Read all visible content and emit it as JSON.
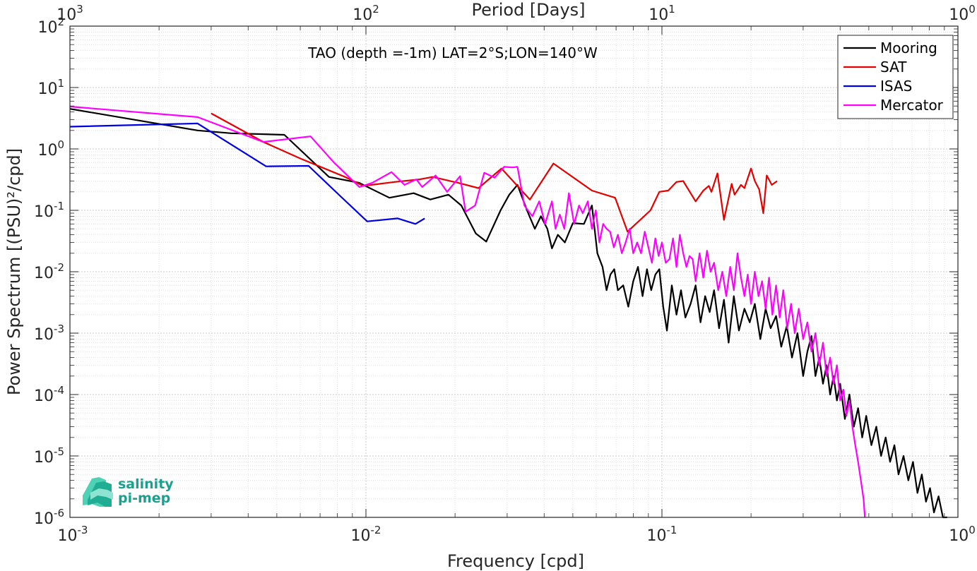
{
  "chart_data": {
    "type": "line",
    "title": "TAO (depth =-1m) LAT=2°S;LON=140°W",
    "xlabel": "Frequency [cpd]",
    "ylabel": "Power Spectrum [(PSU)²/cpd]",
    "top_xlabel": "Period [Days]",
    "xscale": "log",
    "yscale": "log",
    "xlim": [
      0.001,
      1
    ],
    "ylim": [
      1e-06,
      100
    ],
    "grid": true,
    "legend_position": "top-right",
    "x_ticks": [
      {
        "value": 0.001,
        "base": "10",
        "exp": "-3"
      },
      {
        "value": 0.01,
        "base": "10",
        "exp": "-2"
      },
      {
        "value": 0.1,
        "base": "10",
        "exp": "-1"
      },
      {
        "value": 1,
        "base": "10",
        "exp": "0"
      }
    ],
    "top_ticks": [
      {
        "value": 0.001,
        "base": "10",
        "exp": "3"
      },
      {
        "value": 0.01,
        "base": "10",
        "exp": "2"
      },
      {
        "value": 0.1,
        "base": "10",
        "exp": "1"
      },
      {
        "value": 1,
        "base": "10",
        "exp": "0"
      }
    ],
    "y_ticks": [
      {
        "value": 100,
        "base": "10",
        "exp": "2"
      },
      {
        "value": 10,
        "base": "10",
        "exp": "1"
      },
      {
        "value": 1,
        "base": "10",
        "exp": "0"
      },
      {
        "value": 0.1,
        "base": "10",
        "exp": "-1"
      },
      {
        "value": 0.01,
        "base": "10",
        "exp": "-2"
      },
      {
        "value": 0.001,
        "base": "10",
        "exp": "-3"
      },
      {
        "value": 0.0001,
        "base": "10",
        "exp": "-4"
      },
      {
        "value": 1e-05,
        "base": "10",
        "exp": "-5"
      },
      {
        "value": 1e-06,
        "base": "10",
        "exp": "-6"
      }
    ],
    "series": [
      {
        "name": "Mooring",
        "color": "#000000",
        "points": [
          [
            0.001,
            4.5
          ],
          [
            0.0027,
            2.0
          ],
          [
            0.0035,
            1.8
          ],
          [
            0.0053,
            1.7
          ],
          [
            0.0075,
            0.35
          ],
          [
            0.0095,
            0.28
          ],
          [
            0.0105,
            0.22
          ],
          [
            0.012,
            0.16
          ],
          [
            0.0145,
            0.19
          ],
          [
            0.0165,
            0.15
          ],
          [
            0.019,
            0.18
          ],
          [
            0.021,
            0.12
          ],
          [
            0.0235,
            0.042
          ],
          [
            0.0255,
            0.031
          ],
          [
            0.0285,
            0.1
          ],
          [
            0.0305,
            0.18
          ],
          [
            0.0325,
            0.26
          ],
          [
            0.035,
            0.1
          ],
          [
            0.0372,
            0.05
          ],
          [
            0.039,
            0.08
          ],
          [
            0.041,
            0.05
          ],
          [
            0.0425,
            0.024
          ],
          [
            0.0445,
            0.04
          ],
          [
            0.047,
            0.03
          ],
          [
            0.05,
            0.062
          ],
          [
            0.0545,
            0.06
          ],
          [
            0.058,
            0.12
          ],
          [
            0.0605,
            0.02
          ],
          [
            0.063,
            0.012
          ],
          [
            0.065,
            0.005
          ],
          [
            0.067,
            0.009
          ],
          [
            0.069,
            0.011
          ],
          [
            0.071,
            0.005
          ],
          [
            0.074,
            0.006
          ],
          [
            0.077,
            0.0027
          ],
          [
            0.08,
            0.007
          ],
          [
            0.083,
            0.012
          ],
          [
            0.086,
            0.004
          ],
          [
            0.089,
            0.011
          ],
          [
            0.092,
            0.005
          ],
          [
            0.095,
            0.009
          ],
          [
            0.098,
            0.011
          ],
          [
            0.101,
            0.0027
          ],
          [
            0.104,
            0.0011
          ],
          [
            0.108,
            0.006
          ],
          [
            0.112,
            0.002
          ],
          [
            0.116,
            0.005
          ],
          [
            0.12,
            0.0018
          ],
          [
            0.125,
            0.003
          ],
          [
            0.13,
            0.006
          ],
          [
            0.135,
            0.0015
          ],
          [
            0.14,
            0.004
          ],
          [
            0.145,
            0.0022
          ],
          [
            0.15,
            0.005
          ],
          [
            0.156,
            0.0012
          ],
          [
            0.162,
            0.0035
          ],
          [
            0.168,
            0.0007
          ],
          [
            0.175,
            0.004
          ],
          [
            0.182,
            0.0011
          ],
          [
            0.19,
            0.0025
          ],
          [
            0.198,
            0.0015
          ],
          [
            0.206,
            0.003
          ],
          [
            0.215,
            0.0008
          ],
          [
            0.224,
            0.0025
          ],
          [
            0.233,
            0.0012
          ],
          [
            0.243,
            0.0019
          ],
          [
            0.253,
            0.0006
          ],
          [
            0.264,
            0.0013
          ],
          [
            0.275,
            0.0004
          ],
          [
            0.287,
            0.001
          ],
          [
            0.3,
            0.0002
          ],
          [
            0.31,
            0.0005
          ],
          [
            0.32,
            0.0009
          ],
          [
            0.33,
            0.0002
          ],
          [
            0.34,
            0.0004
          ],
          [
            0.35,
            0.00015
          ],
          [
            0.36,
            0.0003
          ],
          [
            0.37,
            0.0001
          ],
          [
            0.38,
            0.0002
          ],
          [
            0.39,
            8e-05
          ],
          [
            0.4,
            0.00015
          ],
          [
            0.415,
            4e-05
          ],
          [
            0.43,
            0.0001
          ],
          [
            0.445,
            3e-05
          ],
          [
            0.46,
            6e-05
          ],
          [
            0.475,
            2e-05
          ],
          [
            0.49,
            4.5e-05
          ],
          [
            0.51,
            1.5e-05
          ],
          [
            0.53,
            3e-05
          ],
          [
            0.55,
            1e-05
          ],
          [
            0.57,
            2e-05
          ],
          [
            0.59,
            8e-06
          ],
          [
            0.61,
            1.5e-05
          ],
          [
            0.63,
            5e-06
          ],
          [
            0.655,
            1e-05
          ],
          [
            0.68,
            4e-06
          ],
          [
            0.705,
            8e-06
          ],
          [
            0.73,
            2.5e-06
          ],
          [
            0.755,
            5e-06
          ],
          [
            0.78,
            1.8e-06
          ],
          [
            0.805,
            3e-06
          ],
          [
            0.83,
            1.2e-06
          ],
          [
            0.86,
            2.2e-06
          ],
          [
            0.89,
            1e-06
          ],
          [
            0.92,
            1e-06
          ]
        ]
      },
      {
        "name": "SAT",
        "color": "#e50000",
        "points": [
          [
            0.003,
            3.8
          ],
          [
            0.0045,
            1.3
          ],
          [
            0.006,
            0.7
          ],
          [
            0.0085,
            0.35
          ],
          [
            0.0098,
            0.25
          ],
          [
            0.0125,
            0.29
          ],
          [
            0.0152,
            0.32
          ],
          [
            0.0168,
            0.35
          ],
          [
            0.0205,
            0.28
          ],
          [
            0.024,
            0.23
          ],
          [
            0.0287,
            0.48
          ],
          [
            0.0358,
            0.15
          ],
          [
            0.043,
            0.58
          ],
          [
            0.0487,
            0.38
          ],
          [
            0.058,
            0.21
          ],
          [
            0.0695,
            0.16
          ],
          [
            0.0765,
            0.045
          ],
          [
            0.0915,
            0.1
          ],
          [
            0.098,
            0.2
          ],
          [
            0.105,
            0.21
          ],
          [
            0.112,
            0.29
          ],
          [
            0.118,
            0.3
          ],
          [
            0.13,
            0.14
          ],
          [
            0.138,
            0.21
          ],
          [
            0.144,
            0.25
          ],
          [
            0.147,
            0.2
          ],
          [
            0.154,
            0.4
          ],
          [
            0.162,
            0.07
          ],
          [
            0.172,
            0.27
          ],
          [
            0.176,
            0.18
          ],
          [
            0.185,
            0.26
          ],
          [
            0.19,
            0.23
          ],
          [
            0.2,
            0.48
          ],
          [
            0.206,
            0.3
          ],
          [
            0.213,
            0.22
          ],
          [
            0.22,
            0.09
          ],
          [
            0.226,
            0.37
          ],
          [
            0.235,
            0.26
          ],
          [
            0.245,
            0.3
          ]
        ]
      },
      {
        "name": "ISAS",
        "color": "#0000e5",
        "points": [
          [
            0.001,
            2.3
          ],
          [
            0.0027,
            2.6
          ],
          [
            0.0046,
            0.52
          ],
          [
            0.0064,
            0.53
          ],
          [
            0.0082,
            0.17
          ],
          [
            0.0101,
            0.066
          ],
          [
            0.0128,
            0.074
          ],
          [
            0.0147,
            0.06
          ],
          [
            0.0158,
            0.074
          ]
        ]
      },
      {
        "name": "Mercator",
        "color": "#ff00ff",
        "points": [
          [
            0.001,
            4.9
          ],
          [
            0.0027,
            3.3
          ],
          [
            0.0045,
            1.3
          ],
          [
            0.0065,
            1.6
          ],
          [
            0.0078,
            0.6
          ],
          [
            0.0095,
            0.24
          ],
          [
            0.0105,
            0.28
          ],
          [
            0.0122,
            0.42
          ],
          [
            0.0135,
            0.26
          ],
          [
            0.0148,
            0.32
          ],
          [
            0.0155,
            0.24
          ],
          [
            0.0172,
            0.37
          ],
          [
            0.0188,
            0.2
          ],
          [
            0.0208,
            0.36
          ],
          [
            0.0217,
            0.095
          ],
          [
            0.0234,
            0.12
          ],
          [
            0.0251,
            0.41
          ],
          [
            0.0272,
            0.34
          ],
          [
            0.0293,
            0.51
          ],
          [
            0.0313,
            0.5
          ],
          [
            0.0325,
            0.51
          ],
          [
            0.0343,
            0.12
          ],
          [
            0.0365,
            0.08
          ],
          [
            0.0385,
            0.14
          ],
          [
            0.0403,
            0.06
          ],
          [
            0.0425,
            0.14
          ],
          [
            0.0437,
            0.05
          ],
          [
            0.0452,
            0.085
          ],
          [
            0.0468,
            0.05
          ],
          [
            0.0485,
            0.19
          ],
          [
            0.0505,
            0.06
          ],
          [
            0.0525,
            0.12
          ],
          [
            0.054,
            0.09
          ],
          [
            0.0562,
            0.14
          ],
          [
            0.058,
            0.05
          ],
          [
            0.0598,
            0.1
          ],
          [
            0.0615,
            0.03
          ],
          [
            0.0633,
            0.06
          ],
          [
            0.065,
            0.05
          ],
          [
            0.0668,
            0.045
          ],
          [
            0.0688,
            0.025
          ],
          [
            0.071,
            0.04
          ],
          [
            0.0732,
            0.02
          ],
          [
            0.0754,
            0.03
          ],
          [
            0.0778,
            0.05
          ],
          [
            0.08,
            0.02
          ],
          [
            0.0825,
            0.03
          ],
          [
            0.085,
            0.02
          ],
          [
            0.0875,
            0.045
          ],
          [
            0.09,
            0.025
          ],
          [
            0.0925,
            0.014
          ],
          [
            0.095,
            0.035
          ],
          [
            0.0975,
            0.018
          ],
          [
            0.1,
            0.03
          ],
          [
            0.103,
            0.014
          ],
          [
            0.106,
            0.016
          ],
          [
            0.109,
            0.035
          ],
          [
            0.112,
            0.012
          ],
          [
            0.115,
            0.04
          ],
          [
            0.118,
            0.02
          ],
          [
            0.121,
            0.012
          ],
          [
            0.124,
            0.018
          ],
          [
            0.127,
            0.016
          ],
          [
            0.13,
            0.007
          ],
          [
            0.134,
            0.02
          ],
          [
            0.138,
            0.008
          ],
          [
            0.142,
            0.022
          ],
          [
            0.146,
            0.01
          ],
          [
            0.15,
            0.014
          ],
          [
            0.155,
            0.005
          ],
          [
            0.16,
            0.01
          ],
          [
            0.165,
            0.004
          ],
          [
            0.17,
            0.012
          ],
          [
            0.175,
            0.005
          ],
          [
            0.18,
            0.02
          ],
          [
            0.185,
            0.008
          ],
          [
            0.19,
            0.004
          ],
          [
            0.195,
            0.009
          ],
          [
            0.2,
            0.003
          ],
          [
            0.206,
            0.01
          ],
          [
            0.212,
            0.004
          ],
          [
            0.218,
            0.007
          ],
          [
            0.224,
            0.0025
          ],
          [
            0.23,
            0.008
          ],
          [
            0.236,
            0.002
          ],
          [
            0.243,
            0.006
          ],
          [
            0.25,
            0.0018
          ],
          [
            0.257,
            0.005
          ],
          [
            0.265,
            0.0012
          ],
          [
            0.273,
            0.003
          ],
          [
            0.281,
            0.001
          ],
          [
            0.29,
            0.0025
          ],
          [
            0.3,
            0.0008
          ],
          [
            0.31,
            0.0015
          ],
          [
            0.32,
            0.0005
          ],
          [
            0.33,
            0.001
          ],
          [
            0.34,
            0.0003
          ],
          [
            0.35,
            0.0007
          ],
          [
            0.36,
            0.0002
          ],
          [
            0.37,
            0.0004
          ],
          [
            0.38,
            0.00015
          ],
          [
            0.39,
            0.0003
          ],
          [
            0.4,
            8e-05
          ],
          [
            0.41,
            0.00012
          ],
          [
            0.42,
            4.5e-05
          ],
          [
            0.43,
            8e-05
          ],
          [
            0.44,
            3e-05
          ],
          [
            0.45,
            1.5e-05
          ],
          [
            0.46,
            8e-06
          ],
          [
            0.47,
            4e-06
          ],
          [
            0.48,
            2e-06
          ],
          [
            0.485,
            1e-06
          ]
        ]
      }
    ]
  },
  "logo": {
    "line1": "salinity",
    "line2": "pi-mep"
  }
}
